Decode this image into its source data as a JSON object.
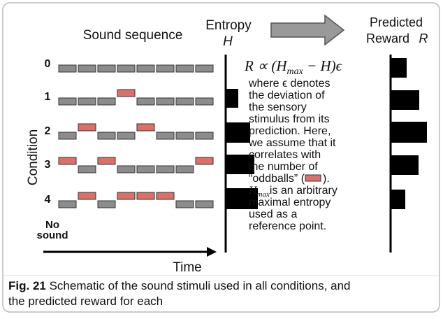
{
  "figure": {
    "sound_sequence_label": "Sound sequence",
    "entropy_label": "Entropy",
    "entropy_symbol": "H",
    "reward_label": "Predicted",
    "reward_label_2": "Reward",
    "reward_symbol": "R",
    "formula": {
      "lead": "R ∝ (H",
      "sub": "max",
      "tail": " − H)ϵ"
    },
    "condition_axis": "Condition",
    "condition_labels": [
      "0",
      "1",
      "2",
      "3",
      "4"
    ],
    "no_sound": [
      "No",
      "sound"
    ],
    "time_label": "Time",
    "description": [
      "where ϵ denotes",
      "the deviation of",
      "the sensory",
      "stimulus from its",
      "prediction. Here,",
      "we assume that it",
      "correlates with",
      "the number of"
    ],
    "oddball_line": {
      "before": "“oddballs” (",
      "after": ")."
    },
    "hmax_line": {
      "symbol": "H",
      "sub": "max",
      "rest": "is an arbitrary"
    },
    "description_end": [
      "maximal entropy",
      "used as a",
      "reference point."
    ]
  },
  "caption": {
    "label": "Fig. 21",
    "lines": [
      " Schematic of the sound stimuli used in all conditions, and",
      "the predicted reward for each"
    ]
  }
}
